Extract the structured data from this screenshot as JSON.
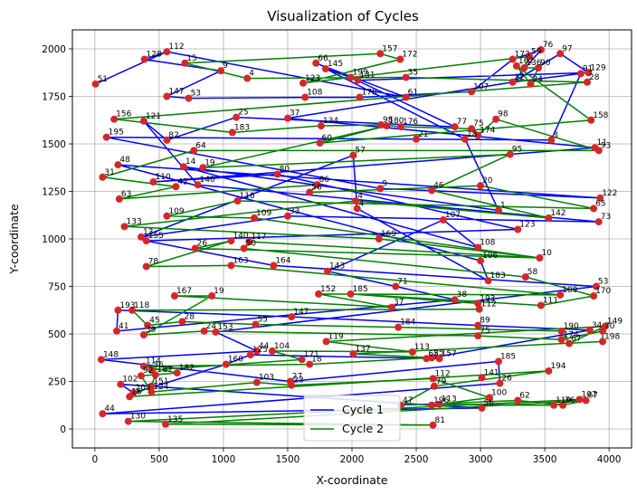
{
  "chart_data": {
    "type": "scatter",
    "title": "Visualization of Cycles",
    "xlabel": "X-coordinate",
    "ylabel": "Y-coordinate",
    "xlim": [
      -175,
      4175
    ],
    "ylim": [
      -100,
      2100
    ],
    "xticks": [
      0,
      500,
      1000,
      1500,
      2000,
      2500,
      3000,
      3500,
      4000
    ],
    "yticks": [
      0,
      250,
      500,
      750,
      1000,
      1250,
      1500,
      1750,
      2000
    ],
    "grid": true,
    "legend_position": "bottom-center",
    "point_color": "#d62728",
    "points": [
      {
        "label": "112",
        "x": 560,
        "y": 1985
      },
      {
        "label": "128",
        "x": 385,
        "y": 1945
      },
      {
        "label": "15",
        "x": 700,
        "y": 1925
      },
      {
        "label": "9",
        "x": 980,
        "y": 1885
      },
      {
        "label": "4",
        "x": 1185,
        "y": 1845
      },
      {
        "label": "51",
        "x": 5,
        "y": 1815
      },
      {
        "label": "147",
        "x": 560,
        "y": 1750
      },
      {
        "label": "53",
        "x": 730,
        "y": 1740
      },
      {
        "label": "66",
        "x": 1720,
        "y": 1925
      },
      {
        "label": "145",
        "x": 1795,
        "y": 1895
      },
      {
        "label": "157",
        "x": 2220,
        "y": 1975
      },
      {
        "label": "172",
        "x": 2375,
        "y": 1945
      },
      {
        "label": "199",
        "x": 1990,
        "y": 1850
      },
      {
        "label": "131",
        "x": 2045,
        "y": 1835
      },
      {
        "label": "123",
        "x": 1620,
        "y": 1820
      },
      {
        "label": "35",
        "x": 2420,
        "y": 1850
      },
      {
        "label": "108",
        "x": 1635,
        "y": 1745
      },
      {
        "label": "178",
        "x": 2060,
        "y": 1745
      },
      {
        "label": "61",
        "x": 2420,
        "y": 1745
      },
      {
        "label": "107",
        "x": 2930,
        "y": 1775
      },
      {
        "label": "76",
        "x": 3470,
        "y": 1995
      },
      {
        "label": "97",
        "x": 3620,
        "y": 1975
      },
      {
        "label": "59",
        "x": 3380,
        "y": 1960
      },
      {
        "label": "173",
        "x": 3250,
        "y": 1945
      },
      {
        "label": "162",
        "x": 3280,
        "y": 1910
      },
      {
        "label": "136",
        "x": 3340,
        "y": 1900
      },
      {
        "label": "90",
        "x": 3450,
        "y": 1900
      },
      {
        "label": "129",
        "x": 3840,
        "y": 1875
      },
      {
        "label": "91",
        "x": 3780,
        "y": 1870
      },
      {
        "label": "28",
        "x": 3830,
        "y": 1825
      },
      {
        "label": "32",
        "x": 3250,
        "y": 1825
      },
      {
        "label": "24",
        "x": 3390,
        "y": 1815
      },
      {
        "label": "156",
        "x": 150,
        "y": 1630
      },
      {
        "label": "121",
        "x": 380,
        "y": 1620
      },
      {
        "label": "195",
        "x": 90,
        "y": 1535
      },
      {
        "label": "82",
        "x": 560,
        "y": 1520
      },
      {
        "label": "25",
        "x": 1100,
        "y": 1640
      },
      {
        "label": "183",
        "x": 1070,
        "y": 1560
      },
      {
        "label": "37",
        "x": 1500,
        "y": 1635
      },
      {
        "label": "134",
        "x": 1760,
        "y": 1595
      },
      {
        "label": "60",
        "x": 1750,
        "y": 1505
      },
      {
        "label": "98",
        "x": 2225,
        "y": 1600
      },
      {
        "label": "180",
        "x": 2270,
        "y": 1595
      },
      {
        "label": "176",
        "x": 2380,
        "y": 1590
      },
      {
        "label": "77",
        "x": 2800,
        "y": 1590
      },
      {
        "label": "21",
        "x": 2500,
        "y": 1525
      },
      {
        "label": "75",
        "x": 2930,
        "y": 1580
      },
      {
        "label": "18",
        "x": 2880,
        "y": 1525
      },
      {
        "label": "174",
        "x": 2980,
        "y": 1545
      },
      {
        "label": "98",
        "x": 3120,
        "y": 1630
      },
      {
        "label": "158",
        "x": 3860,
        "y": 1625
      },
      {
        "label": "3",
        "x": 3550,
        "y": 1520
      },
      {
        "label": "11",
        "x": 3890,
        "y": 1480
      },
      {
        "label": "93",
        "x": 3920,
        "y": 1465
      },
      {
        "label": "64",
        "x": 770,
        "y": 1465
      },
      {
        "label": "48",
        "x": 180,
        "y": 1390
      },
      {
        "label": "31",
        "x": 60,
        "y": 1325
      },
      {
        "label": "110",
        "x": 455,
        "y": 1300
      },
      {
        "label": "42",
        "x": 630,
        "y": 1275
      },
      {
        "label": "140",
        "x": 800,
        "y": 1285
      },
      {
        "label": "14",
        "x": 690,
        "y": 1380
      },
      {
        "label": "19",
        "x": 840,
        "y": 1375
      },
      {
        "label": "63",
        "x": 190,
        "y": 1210
      },
      {
        "label": "80",
        "x": 1420,
        "y": 1340
      },
      {
        "label": "57",
        "x": 2010,
        "y": 1440
      },
      {
        "label": "95",
        "x": 3230,
        "y": 1445
      },
      {
        "label": "86",
        "x": 1730,
        "y": 1285
      },
      {
        "label": "56",
        "x": 1670,
        "y": 1245
      },
      {
        "label": "9",
        "x": 2220,
        "y": 1265
      },
      {
        "label": "46",
        "x": 2620,
        "y": 1255
      },
      {
        "label": "20",
        "x": 3000,
        "y": 1280
      },
      {
        "label": "122",
        "x": 3930,
        "y": 1215
      },
      {
        "label": "65",
        "x": 3880,
        "y": 1160
      },
      {
        "label": "73",
        "x": 3920,
        "y": 1090
      },
      {
        "label": "1",
        "x": 3140,
        "y": 1150
      },
      {
        "label": "142",
        "x": 3530,
        "y": 1110
      },
      {
        "label": "123",
        "x": 3290,
        "y": 1050
      },
      {
        "label": "118",
        "x": 1110,
        "y": 1200
      },
      {
        "label": "33",
        "x": 1500,
        "y": 1120
      },
      {
        "label": "4",
        "x": 2030,
        "y": 1200
      },
      {
        "label": "4",
        "x": 2040,
        "y": 1160
      },
      {
        "label": "109",
        "x": 560,
        "y": 1120
      },
      {
        "label": "133",
        "x": 230,
        "y": 1065
      },
      {
        "label": "13",
        "x": 360,
        "y": 1010
      },
      {
        "label": "155",
        "x": 400,
        "y": 990
      },
      {
        "label": "109",
        "x": 1240,
        "y": 1110
      },
      {
        "label": "107",
        "x": 2710,
        "y": 1100
      },
      {
        "label": "169",
        "x": 2210,
        "y": 1000
      },
      {
        "label": "108",
        "x": 2980,
        "y": 955
      },
      {
        "label": "10",
        "x": 3460,
        "y": 900
      },
      {
        "label": "106",
        "x": 3000,
        "y": 885
      },
      {
        "label": "26",
        "x": 780,
        "y": 950
      },
      {
        "label": "140",
        "x": 1060,
        "y": 990
      },
      {
        "label": "117",
        "x": 1200,
        "y": 985
      },
      {
        "label": "50",
        "x": 1160,
        "y": 950
      },
      {
        "label": "78",
        "x": 400,
        "y": 855
      },
      {
        "label": "163",
        "x": 1060,
        "y": 860
      },
      {
        "label": "164",
        "x": 1390,
        "y": 860
      },
      {
        "label": "143",
        "x": 1810,
        "y": 830
      },
      {
        "label": "58",
        "x": 3350,
        "y": 800
      },
      {
        "label": "183",
        "x": 3060,
        "y": 780
      },
      {
        "label": "53",
        "x": 3900,
        "y": 750
      },
      {
        "label": "170",
        "x": 3880,
        "y": 700
      },
      {
        "label": "189",
        "x": 3620,
        "y": 705
      },
      {
        "label": "111",
        "x": 3470,
        "y": 650
      },
      {
        "label": "71",
        "x": 2340,
        "y": 750
      },
      {
        "label": "185",
        "x": 1990,
        "y": 710
      },
      {
        "label": "152",
        "x": 1740,
        "y": 710
      },
      {
        "label": "37",
        "x": 2310,
        "y": 640
      },
      {
        "label": "38",
        "x": 2800,
        "y": 680
      },
      {
        "label": "193",
        "x": 2980,
        "y": 660
      },
      {
        "label": "112",
        "x": 2990,
        "y": 630
      },
      {
        "label": "167",
        "x": 620,
        "y": 700
      },
      {
        "label": "19",
        "x": 910,
        "y": 700
      },
      {
        "label": "193",
        "x": 180,
        "y": 625
      },
      {
        "label": "118",
        "x": 290,
        "y": 625
      },
      {
        "label": "41",
        "x": 170,
        "y": 515
      },
      {
        "label": "45",
        "x": 410,
        "y": 545
      },
      {
        "label": "39",
        "x": 380,
        "y": 495
      },
      {
        "label": "28",
        "x": 680,
        "y": 565
      },
      {
        "label": "24",
        "x": 850,
        "y": 515
      },
      {
        "label": "153",
        "x": 940,
        "y": 510
      },
      {
        "label": "55",
        "x": 1250,
        "y": 550
      },
      {
        "label": "147",
        "x": 1530,
        "y": 590
      },
      {
        "label": "184",
        "x": 2360,
        "y": 535
      },
      {
        "label": "89",
        "x": 2980,
        "y": 545
      },
      {
        "label": "75",
        "x": 2980,
        "y": 490
      },
      {
        "label": "190",
        "x": 3630,
        "y": 515
      },
      {
        "label": "174",
        "x": 3630,
        "y": 470
      },
      {
        "label": "67",
        "x": 3690,
        "y": 450
      },
      {
        "label": "34",
        "x": 3850,
        "y": 520
      },
      {
        "label": "70",
        "x": 3950,
        "y": 515
      },
      {
        "label": "149",
        "x": 3970,
        "y": 540
      },
      {
        "label": "198",
        "x": 3950,
        "y": 460
      },
      {
        "label": "119",
        "x": 1800,
        "y": 460
      },
      {
        "label": "137",
        "x": 2010,
        "y": 395
      },
      {
        "label": "113",
        "x": 2470,
        "y": 405
      },
      {
        "label": "65",
        "x": 2580,
        "y": 370
      },
      {
        "label": "25",
        "x": 2620,
        "y": 375
      },
      {
        "label": "157",
        "x": 2680,
        "y": 370
      },
      {
        "label": "44",
        "x": 1260,
        "y": 410
      },
      {
        "label": "104",
        "x": 1380,
        "y": 410
      },
      {
        "label": "125",
        "x": 1210,
        "y": 390
      },
      {
        "label": "171",
        "x": 1610,
        "y": 365
      },
      {
        "label": "18",
        "x": 1670,
        "y": 340
      },
      {
        "label": "148",
        "x": 50,
        "y": 365
      },
      {
        "label": "114",
        "x": 380,
        "y": 330
      },
      {
        "label": "36",
        "x": 440,
        "y": 310
      },
      {
        "label": "182",
        "x": 640,
        "y": 295
      },
      {
        "label": "160",
        "x": 1020,
        "y": 340
      },
      {
        "label": "187",
        "x": 470,
        "y": 285
      },
      {
        "label": "92",
        "x": 360,
        "y": 280
      },
      {
        "label": "102",
        "x": 200,
        "y": 235
      },
      {
        "label": "151",
        "x": 440,
        "y": 225
      },
      {
        "label": "124",
        "x": 440,
        "y": 195
      },
      {
        "label": "203",
        "x": 300,
        "y": 190
      },
      {
        "label": "16",
        "x": 270,
        "y": 170
      },
      {
        "label": "103",
        "x": 1260,
        "y": 245
      },
      {
        "label": "27",
        "x": 1520,
        "y": 250
      },
      {
        "label": "23",
        "x": 1530,
        "y": 230
      },
      {
        "label": "185",
        "x": 3140,
        "y": 355
      },
      {
        "label": "194",
        "x": 3530,
        "y": 305
      },
      {
        "label": "141",
        "x": 3010,
        "y": 270
      },
      {
        "label": "112",
        "x": 2630,
        "y": 265
      },
      {
        "label": "79",
        "x": 2640,
        "y": 225
      },
      {
        "label": "26",
        "x": 3150,
        "y": 240
      },
      {
        "label": "100",
        "x": 3070,
        "y": 165
      },
      {
        "label": "47",
        "x": 2380,
        "y": 125
      },
      {
        "label": "196",
        "x": 2620,
        "y": 125
      },
      {
        "label": "113",
        "x": 2680,
        "y": 130
      },
      {
        "label": "56",
        "x": 3010,
        "y": 110
      },
      {
        "label": "62",
        "x": 3290,
        "y": 150
      },
      {
        "label": "119",
        "x": 3570,
        "y": 125
      },
      {
        "label": "76",
        "x": 3640,
        "y": 125
      },
      {
        "label": "107",
        "x": 3770,
        "y": 155
      },
      {
        "label": "67",
        "x": 3820,
        "y": 150
      },
      {
        "label": "44",
        "x": 60,
        "y": 80
      },
      {
        "label": "130",
        "x": 260,
        "y": 40
      },
      {
        "label": "135",
        "x": 550,
        "y": 25
      },
      {
        "label": "81",
        "x": 2630,
        "y": 20
      }
    ],
    "series": [
      {
        "name": "Cycle 1",
        "color": "#0000ff",
        "order": [
          5,
          0,
          18,
          8,
          13,
          27,
          21,
          30,
          28,
          51,
          45,
          34,
          68,
          71,
          55,
          90,
          100,
          80,
          64,
          83,
          78,
          73,
          59,
          33,
          35,
          36,
          44,
          12,
          9,
          47,
          74,
          60,
          88,
          86,
          98,
          105,
          109,
          116,
          114,
          123,
          125,
          130,
          137,
          139,
          142,
          149,
          155,
          152,
          168,
          170,
          181,
          186,
          183,
          176,
          165,
          160,
          158,
          145,
          140,
          121,
          101,
          97,
          84,
          76,
          63,
          57,
          52,
          38,
          30,
          20,
          23,
          19,
          17,
          16,
          7,
          6,
          3,
          1,
          0
        ]
      },
      {
        "name": "Cycle 2",
        "color": "#008000",
        "order": [
          2,
          10,
          11,
          14,
          22,
          25,
          26,
          31,
          24,
          50,
          40,
          42,
          61,
          65,
          69,
          75,
          79,
          82,
          87,
          89,
          93,
          94,
          99,
          102,
          104,
          106,
          110,
          111,
          115,
          117,
          119,
          122,
          124,
          127,
          129,
          132,
          134,
          136,
          141,
          143,
          147,
          150,
          153,
          156,
          161,
          164,
          167,
          171,
          173,
          175,
          178,
          179,
          182,
          185,
          187,
          180,
          177,
          174,
          172,
          169,
          166,
          163,
          159,
          157,
          154,
          151,
          148,
          146,
          144,
          138,
          135,
          133,
          131,
          128,
          126,
          120,
          118,
          113,
          112,
          108,
          107,
          103,
          96,
          95,
          92,
          91,
          89,
          85,
          81,
          77,
          72,
          70,
          67,
          66,
          62,
          58,
          56,
          54,
          53,
          49,
          48,
          46,
          43,
          41,
          39,
          37,
          32,
          29,
          15,
          4,
          2
        ]
      }
    ]
  }
}
